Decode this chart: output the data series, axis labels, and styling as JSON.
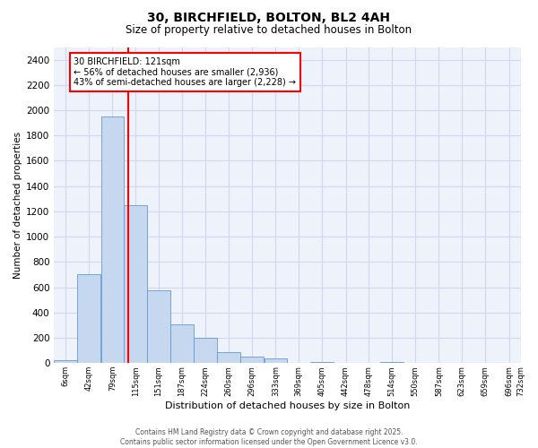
{
  "title": "30, BIRCHFIELD, BOLTON, BL2 4AH",
  "subtitle": "Size of property relative to detached houses in Bolton",
  "xlabel": "Distribution of detached houses by size in Bolton",
  "ylabel": "Number of detached properties",
  "bar_color": "#c5d8f0",
  "bar_edge_color": "#6699cc",
  "bins_left": [
    6,
    42,
    79,
    115,
    151,
    187,
    224,
    260,
    296,
    333,
    369,
    405,
    442,
    478,
    514,
    550,
    587,
    623,
    659,
    696
  ],
  "bin_width": 36,
  "bin_labels": [
    "6sqm",
    "42sqm",
    "79sqm",
    "115sqm",
    "151sqm",
    "187sqm",
    "224sqm",
    "260sqm",
    "296sqm",
    "333sqm",
    "369sqm",
    "405sqm",
    "442sqm",
    "478sqm",
    "514sqm",
    "550sqm",
    "587sqm",
    "623sqm",
    "659sqm",
    "696sqm",
    "732sqm"
  ],
  "values": [
    20,
    700,
    1950,
    1250,
    575,
    305,
    200,
    85,
    50,
    40,
    0,
    5,
    0,
    0,
    5,
    0,
    0,
    0,
    0,
    0
  ],
  "ylim": [
    0,
    2500
  ],
  "yticks": [
    0,
    200,
    400,
    600,
    800,
    1000,
    1200,
    1400,
    1600,
    1800,
    2000,
    2200,
    2400
  ],
  "vline_x": 121,
  "vline_color": "red",
  "annotation_text": "30 BIRCHFIELD: 121sqm\n← 56% of detached houses are smaller (2,936)\n43% of semi-detached houses are larger (2,228) →",
  "annotation_box_color": "white",
  "annotation_box_edge": "red",
  "footer_line1": "Contains HM Land Registry data © Crown copyright and database right 2025.",
  "footer_line2": "Contains public sector information licensed under the Open Government Licence v3.0.",
  "background_color": "#eef2fb",
  "grid_color": "#d0d8ef"
}
